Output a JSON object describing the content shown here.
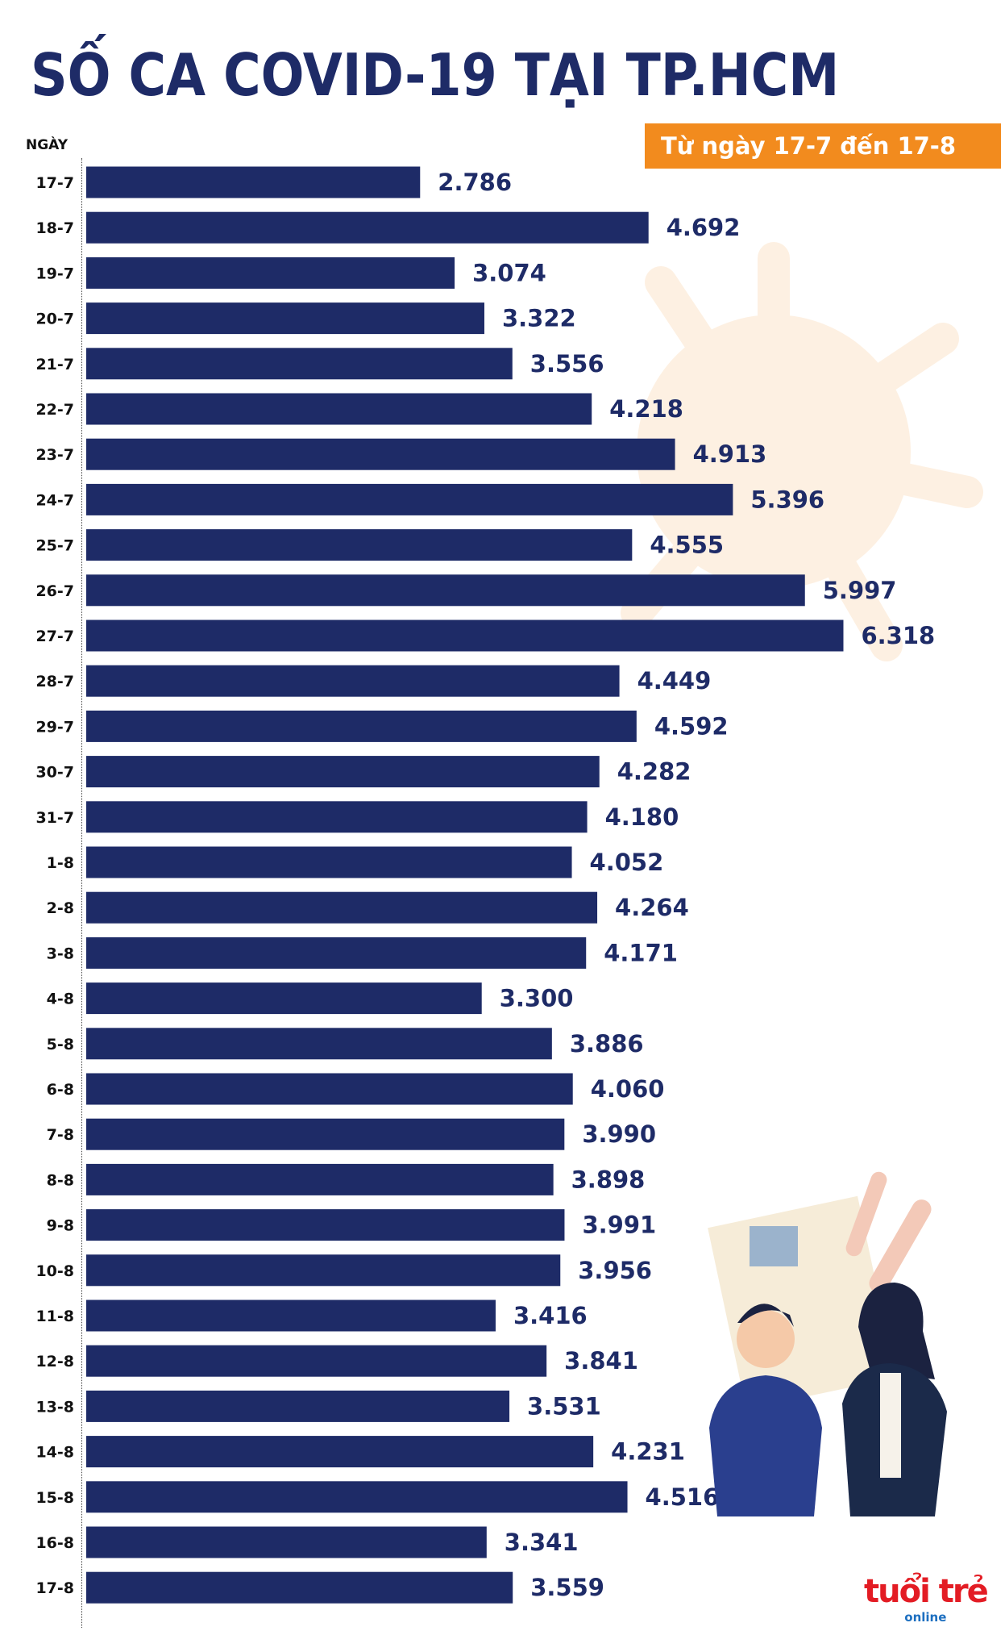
{
  "chart_data": {
    "type": "bar",
    "orientation": "horizontal",
    "title": "SỐ CA COVID-19 TẠI TP.HCM",
    "subtitle": "Từ ngày 17-7 đến 17-8",
    "ylabel": "NGÀY",
    "categories": [
      "17-7",
      "18-7",
      "19-7",
      "20-7",
      "21-7",
      "22-7",
      "23-7",
      "24-7",
      "25-7",
      "26-7",
      "27-7",
      "28-7",
      "29-7",
      "30-7",
      "31-7",
      "1-8",
      "2-8",
      "3-8",
      "4-8",
      "5-8",
      "6-8",
      "7-8",
      "8-8",
      "9-8",
      "10-8",
      "11-8",
      "12-8",
      "13-8",
      "14-8",
      "15-8",
      "16-8",
      "17-8"
    ],
    "values": [
      2786,
      4692,
      3074,
      3322,
      3556,
      4218,
      4913,
      5396,
      4555,
      5997,
      6318,
      4449,
      4592,
      4282,
      4180,
      4052,
      4264,
      4171,
      3300,
      3886,
      4060,
      3990,
      3898,
      3991,
      3956,
      3416,
      3841,
      3531,
      4231,
      4516,
      3341,
      3559
    ],
    "value_labels": [
      "2.786",
      "4.692",
      "3.074",
      "3.322",
      "3.556",
      "4.218",
      "4.913",
      "5.396",
      "4.555",
      "5.997",
      "6.318",
      "4.449",
      "4.592",
      "4.282",
      "4.180",
      "4.052",
      "4.264",
      "4.171",
      "3.300",
      "3.886",
      "4.060",
      "3.990",
      "3.898",
      "3.991",
      "3.956",
      "3.416",
      "3.841",
      "3.531",
      "4.231",
      "4.516",
      "3.341",
      "3.559"
    ],
    "grid": false,
    "legend": "none",
    "colors": {
      "bar": "#1e2b67",
      "badge": "#f28b1e",
      "text": "#1e2b67"
    }
  },
  "logo": {
    "text": "tuổi trẻ",
    "sub": "online"
  }
}
